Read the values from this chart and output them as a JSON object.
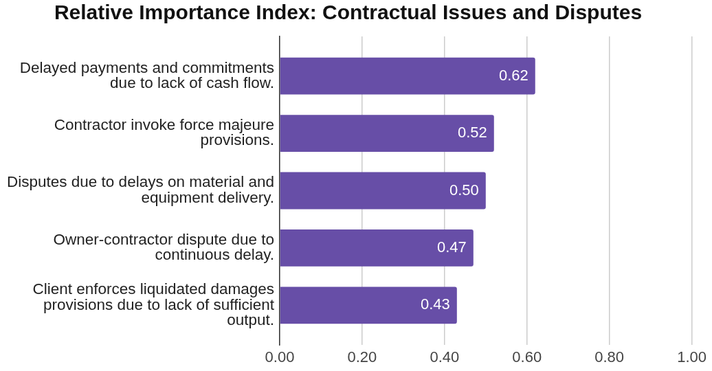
{
  "chart_data": {
    "type": "bar",
    "title": "Relative Importance Index: Contractual Issues and Disputes",
    "orientation": "horizontal",
    "categories": [
      "Delayed payments and commitments due to lack of cash flow.",
      "Contractor invoke force majeure provisions.",
      "Disputes due to delays on material and equipment delivery.",
      "Owner-contractor dispute due to continuous delay.",
      "Client enforces liquidated damages provisions due to lack of sufficient output."
    ],
    "values": [
      0.62,
      0.52,
      0.5,
      0.47,
      0.43
    ],
    "value_labels": [
      "0.62",
      "0.52",
      "0.50",
      "0.47",
      "0.43"
    ],
    "color": "#674ea7",
    "xlim": [
      0,
      1
    ],
    "xticks": [
      {
        "value": 0,
        "label": "0.00"
      },
      {
        "value": 0.2,
        "label": "0.20"
      },
      {
        "value": 0.4,
        "label": "0.40"
      },
      {
        "value": 0.6,
        "label": "0.60"
      },
      {
        "value": 0.8,
        "label": "0.80"
      },
      {
        "value": 1,
        "label": "1.00"
      }
    ],
    "grid": "x"
  }
}
